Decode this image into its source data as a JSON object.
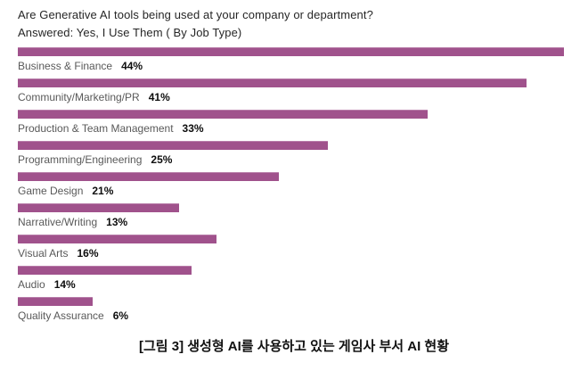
{
  "title": {
    "line1": "Are Generative AI tools being used at your company or department?",
    "line2": "Answered: Yes, I Use Them ( By Job Type)"
  },
  "caption": "[그림 3] 생성형 AI를 사용하고 있는 게임사 부서 AI 현황",
  "colors": {
    "bar": "#a0528c",
    "category_text": "#595959",
    "value_text": "#0d0d0d",
    "title_text": "#262626"
  },
  "chart_data": {
    "type": "bar",
    "orientation": "horizontal",
    "title": "Are Generative AI tools being used at your company or department? Answered: Yes, I Use Them ( By Job Type)",
    "categories": [
      "Business & Finance",
      "Community/Marketing/PR",
      "Production & Team Management",
      "Programming/Engineering",
      "Game Design",
      "Narrative/Writing",
      "Visual Arts",
      "Audio",
      "Quality Assurance"
    ],
    "values": [
      44,
      41,
      33,
      25,
      21,
      13,
      16,
      14,
      6
    ],
    "value_labels": [
      "44%",
      "41%",
      "33%",
      "25%",
      "21%",
      "13%",
      "16%",
      "14%",
      "6%"
    ],
    "xlabel": "",
    "ylabel": "",
    "xlim": [
      0,
      44
    ],
    "grid": false,
    "legend": false,
    "value_label_position": "below-bar-after-category"
  }
}
